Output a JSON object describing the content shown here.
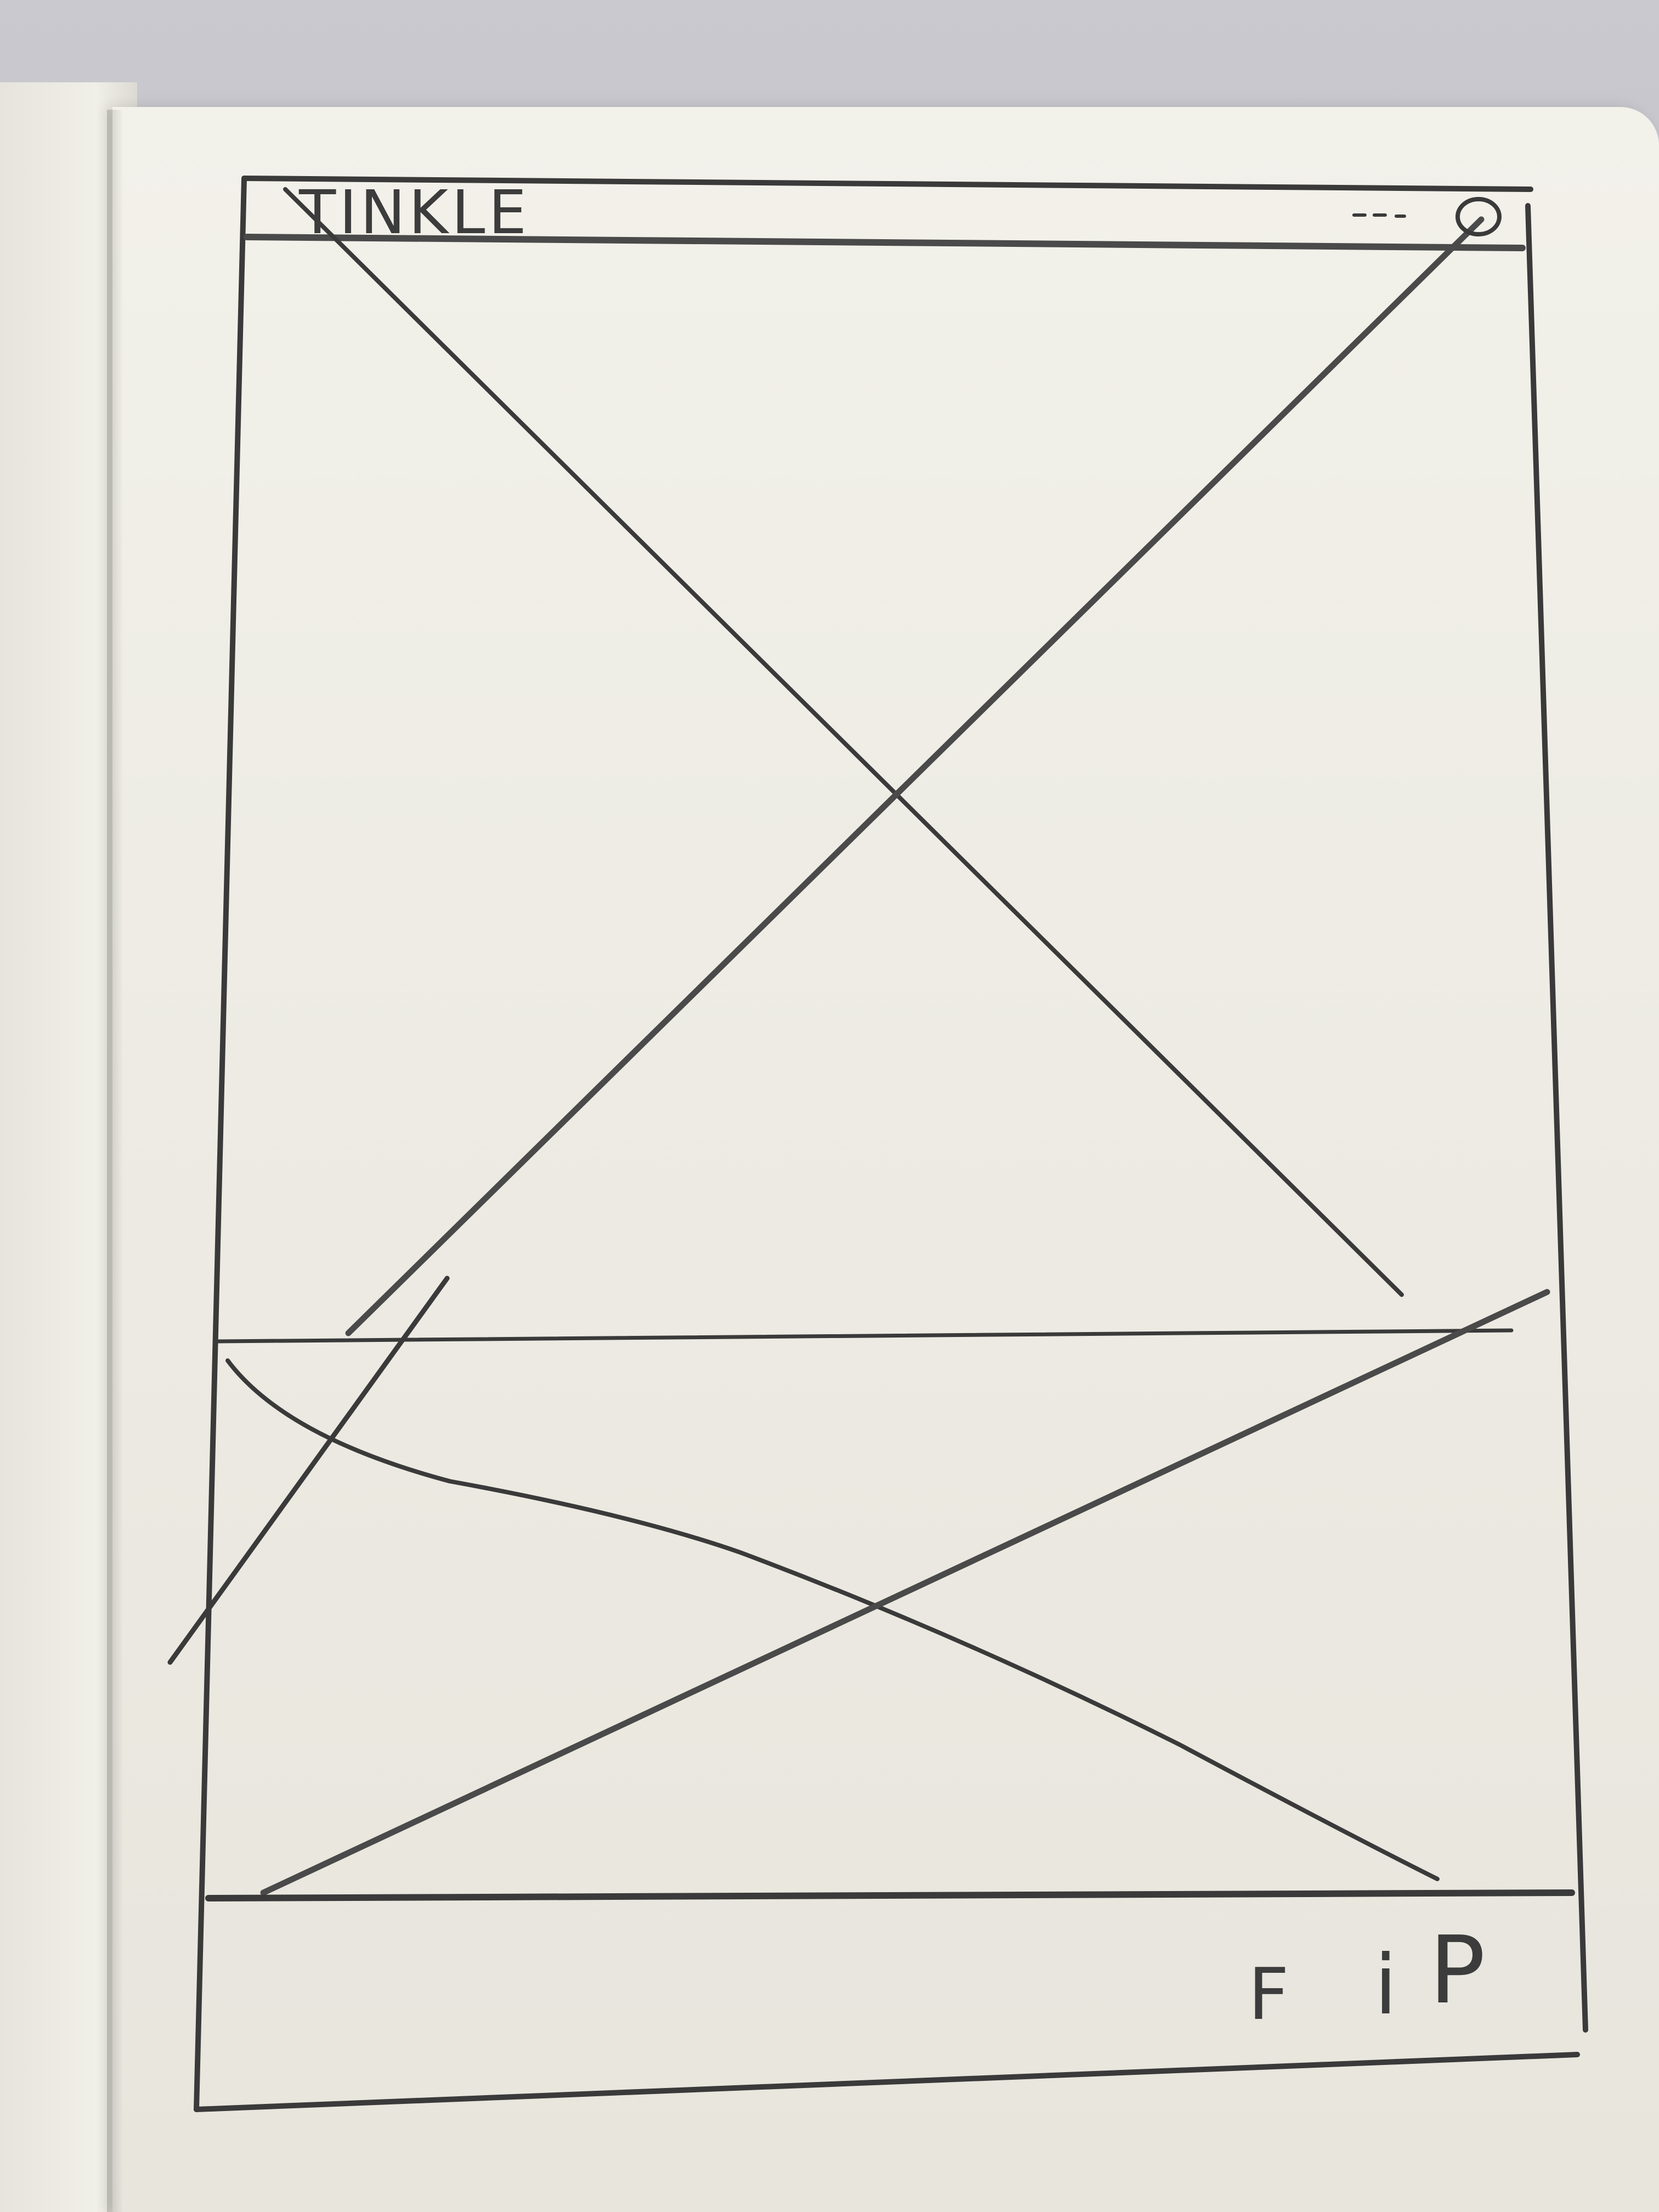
{
  "header": {
    "app_title": "TINKLE",
    "menu_icon": "overflow-dots-icon",
    "profile_icon": "user-circle-icon"
  },
  "main": {
    "hero_image_placeholder": "image-placeholder-icon",
    "secondary_image_placeholder": "image-placeholder-icon"
  },
  "footer": {
    "facebook_label": "F",
    "instagram_label": "i",
    "pinterest_label": "P"
  },
  "colors": {
    "pencil": "#3a3a3a",
    "paper": "#eeede6",
    "background": "#b3b3b9"
  }
}
